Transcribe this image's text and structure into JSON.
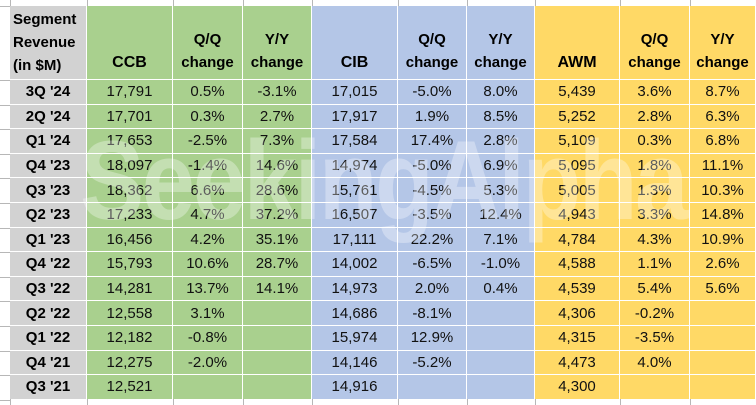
{
  "title": "Segment Revenue (in $M)",
  "corner_header_lines": [
    "Segment",
    "Revenue",
    "(in $M)"
  ],
  "sections": [
    {
      "name": "CCB",
      "qq_header": "Q/Q change",
      "yy_header": "Y/Y change",
      "color": "#A9D08E"
    },
    {
      "name": "CIB",
      "qq_header": "Q/Q change",
      "yy_header": "Y/Y change",
      "color": "#B4C6E7"
    },
    {
      "name": "AWM",
      "qq_header": "Q/Q change",
      "yy_header": "Y/Y change",
      "color": "#FFD966"
    }
  ],
  "watermark": "SeekingAlpha",
  "colors": {
    "ccb_green": "#A9D08E",
    "cib_blue": "#B4C6E7",
    "awm_gold": "#FFD966",
    "header_gray": "#D2D2D2",
    "gridline": "#B7B7B7",
    "cell_border": "#FFFFFF",
    "background": "#FFFFFF",
    "text": "#000000"
  },
  "chart_data": {
    "type": "table",
    "title": "Segment Revenue (in $M)",
    "columns": [
      "Quarter",
      "CCB",
      "CCB Q/Q change",
      "CCB Y/Y change",
      "CIB",
      "CIB Q/Q change",
      "CIB Y/Y change",
      "AWM",
      "AWM Q/Q change",
      "AWM Y/Y change"
    ],
    "rows": [
      [
        "3Q '24",
        "17,791",
        "0.5%",
        "-3.1%",
        "17,015",
        "-5.0%",
        "8.0%",
        "5,439",
        "3.6%",
        "8.7%"
      ],
      [
        "2Q '24",
        "17,701",
        "0.3%",
        "2.7%",
        "17,917",
        "1.9%",
        "8.5%",
        "5,252",
        "2.8%",
        "6.3%"
      ],
      [
        "Q1 '24",
        "17,653",
        "-2.5%",
        "7.3%",
        "17,584",
        "17.4%",
        "2.8%",
        "5,109",
        "0.3%",
        "6.8%"
      ],
      [
        "Q4 '23",
        "18,097",
        "-1.4%",
        "14.6%",
        "14,974",
        "-5.0%",
        "6.9%",
        "5,095",
        "1.8%",
        "11.1%"
      ],
      [
        "Q3 '23",
        "18,362",
        "6.6%",
        "28.6%",
        "15,761",
        "-4.5%",
        "5.3%",
        "5,005",
        "1.3%",
        "10.3%"
      ],
      [
        "Q2 '23",
        "17,233",
        "4.7%",
        "37.2%",
        "16,507",
        "-3.5%",
        "12.4%",
        "4,943",
        "3.3%",
        "14.8%"
      ],
      [
        "Q1 '23",
        "16,456",
        "4.2%",
        "35.1%",
        "17,111",
        "22.2%",
        "7.1%",
        "4,784",
        "4.3%",
        "10.9%"
      ],
      [
        "Q4 '22",
        "15,793",
        "10.6%",
        "28.7%",
        "14,002",
        "-6.5%",
        "-1.0%",
        "4,588",
        "1.1%",
        "2.6%"
      ],
      [
        "Q3 '22",
        "14,281",
        "13.7%",
        "14.1%",
        "14,973",
        "2.0%",
        "0.4%",
        "4,539",
        "5.4%",
        "5.6%"
      ],
      [
        "Q2 '22",
        "12,558",
        "3.1%",
        "",
        "14,686",
        "-8.1%",
        "",
        "4,306",
        "-0.2%",
        ""
      ],
      [
        "Q1 '22",
        "12,182",
        "-0.8%",
        "",
        "15,974",
        "12.9%",
        "",
        "4,315",
        "-3.5%",
        ""
      ],
      [
        "Q4 '21",
        "12,275",
        "-2.0%",
        "",
        "14,146",
        "-5.2%",
        "",
        "4,473",
        "4.0%",
        ""
      ],
      [
        "Q3 '21",
        "12,521",
        "",
        "",
        "14,916",
        "",
        "",
        "4,300",
        "",
        ""
      ]
    ]
  }
}
